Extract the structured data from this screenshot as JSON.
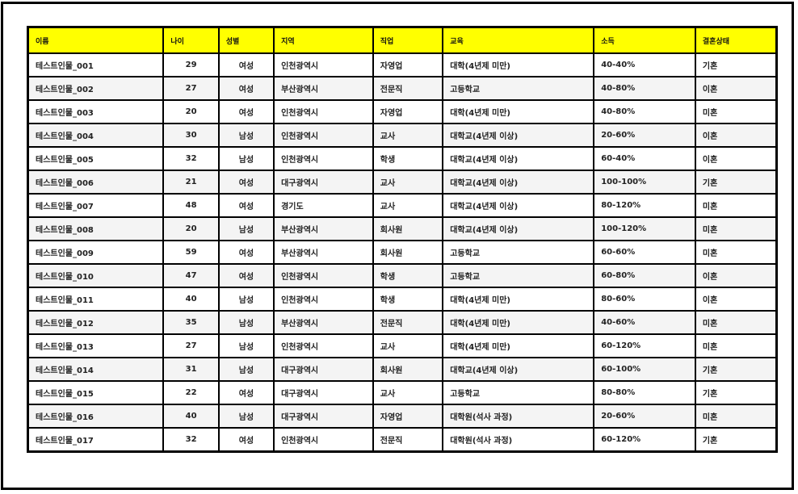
{
  "table": {
    "headers": [
      "이름",
      "나이",
      "성별",
      "지역",
      "직업",
      "교육",
      "소득",
      "결혼상태"
    ],
    "rows": [
      [
        "테스트인물_001",
        "29",
        "여성",
        "인천광역시",
        "자영업",
        "대학(4년제 미만)",
        "40-40%",
        "기혼"
      ],
      [
        "테스트인물_002",
        "27",
        "여성",
        "부산광역시",
        "전문직",
        "고등학교",
        "40-80%",
        "이혼"
      ],
      [
        "테스트인물_003",
        "20",
        "여성",
        "인천광역시",
        "자영업",
        "대학(4년제 미만)",
        "40-80%",
        "미혼"
      ],
      [
        "테스트인물_004",
        "30",
        "남성",
        "인천광역시",
        "교사",
        "대학교(4년제 이상)",
        "20-60%",
        "이혼"
      ],
      [
        "테스트인물_005",
        "32",
        "남성",
        "인천광역시",
        "학생",
        "대학교(4년제 이상)",
        "60-40%",
        "이혼"
      ],
      [
        "테스트인물_006",
        "21",
        "여성",
        "대구광역시",
        "교사",
        "대학교(4년제 이상)",
        "100-100%",
        "기혼"
      ],
      [
        "테스트인물_007",
        "48",
        "여성",
        "경기도",
        "교사",
        "대학교(4년제 이상)",
        "80-120%",
        "미혼"
      ],
      [
        "테스트인물_008",
        "20",
        "남성",
        "부산광역시",
        "회사원",
        "대학교(4년제 이상)",
        "100-120%",
        "미혼"
      ],
      [
        "테스트인물_009",
        "59",
        "여성",
        "부산광역시",
        "회사원",
        "고등학교",
        "60-60%",
        "미혼"
      ],
      [
        "테스트인물_010",
        "47",
        "여성",
        "인천광역시",
        "학생",
        "고등학교",
        "60-80%",
        "이혼"
      ],
      [
        "테스트인물_011",
        "40",
        "남성",
        "인천광역시",
        "학생",
        "대학(4년제 미만)",
        "80-60%",
        "이혼"
      ],
      [
        "테스트인물_012",
        "35",
        "남성",
        "부산광역시",
        "전문직",
        "대학(4년제 미만)",
        "40-60%",
        "미혼"
      ],
      [
        "테스트인물_013",
        "27",
        "남성",
        "인천광역시",
        "교사",
        "대학(4년제 미만)",
        "60-120%",
        "미혼"
      ],
      [
        "테스트인물_014",
        "31",
        "남성",
        "대구광역시",
        "회사원",
        "대학교(4년제 이상)",
        "60-100%",
        "기혼"
      ],
      [
        "테스트인물_015",
        "22",
        "여성",
        "대구광역시",
        "교사",
        "고등학교",
        "80-80%",
        "기혼"
      ],
      [
        "테스트인물_016",
        "40",
        "남성",
        "대구광역시",
        "자영업",
        "대학원(석사 과정)",
        "20-60%",
        "미혼"
      ],
      [
        "테스트인물_017",
        "32",
        "여성",
        "인천광역시",
        "전문직",
        "대학원(석사 과정)",
        "60-120%",
        "기혼"
      ]
    ]
  },
  "colors": {
    "header_background": "#ffff00",
    "border": "#000000",
    "even_row": "#f4f4f4"
  }
}
